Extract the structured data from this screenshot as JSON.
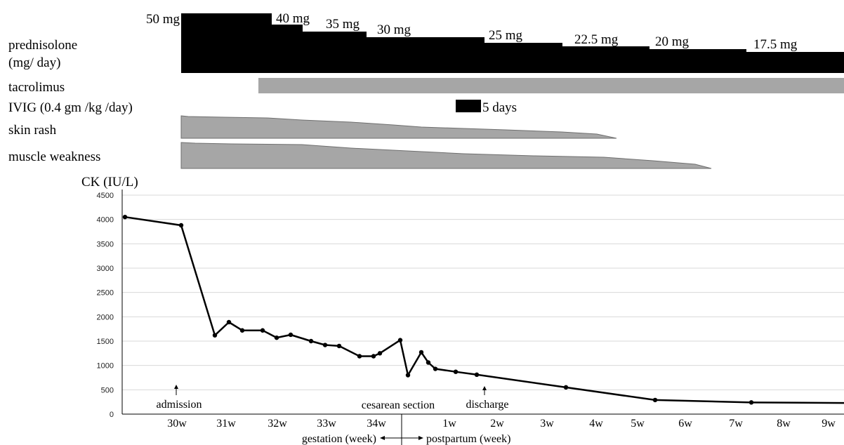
{
  "chart_data": {
    "type": "line",
    "treatment_rows": {
      "prednisolone_label": [
        "prednisolone",
        "(mg/ day)"
      ],
      "prednisolone_doses": [
        "50 mg",
        "40 mg",
        "35 mg",
        "30 mg",
        "25 mg",
        "22.5 mg",
        "20 mg",
        "17.5 mg"
      ],
      "tacrolimus_label": "tacrolimus",
      "ivig_label": "IVIG (0.4 gm /kg /day)",
      "ivig_duration": "5 days",
      "skin_rash_label": "skin rash",
      "muscle_weakness_label": "muscle weakness"
    },
    "ylabel": "CK (IU/L)",
    "ylim": [
      0,
      4500
    ],
    "yticks": [
      0,
      500,
      1000,
      1500,
      2000,
      2500,
      3000,
      3500,
      4000,
      4500
    ],
    "xticks": [
      "30w",
      "31w",
      "32w",
      "33w",
      "34w",
      "1w",
      "2w",
      "3w",
      "4w",
      "5w",
      "6w",
      "7w",
      "8w",
      "9w"
    ],
    "xlabel_left": "gestation (week)",
    "xlabel_right": "postpartum (week)",
    "annotations": [
      "admission",
      "cesarean section",
      "discharge"
    ],
    "series": [
      {
        "values": [
          4050,
          3880,
          1620,
          1890,
          1720,
          1720,
          1570,
          1630,
          1500,
          1420,
          1400,
          1190,
          1190,
          1250,
          1520,
          800,
          1270,
          1060,
          930,
          870,
          810,
          550,
          290,
          240,
          230
        ]
      }
    ],
    "grid": true,
    "colors": {
      "line": "#000000",
      "bar_dark": "#000000",
      "bar_gray": "#a6a6a6",
      "fill_gray": "#a6a6a6",
      "grid": "#d9d9d9"
    }
  }
}
